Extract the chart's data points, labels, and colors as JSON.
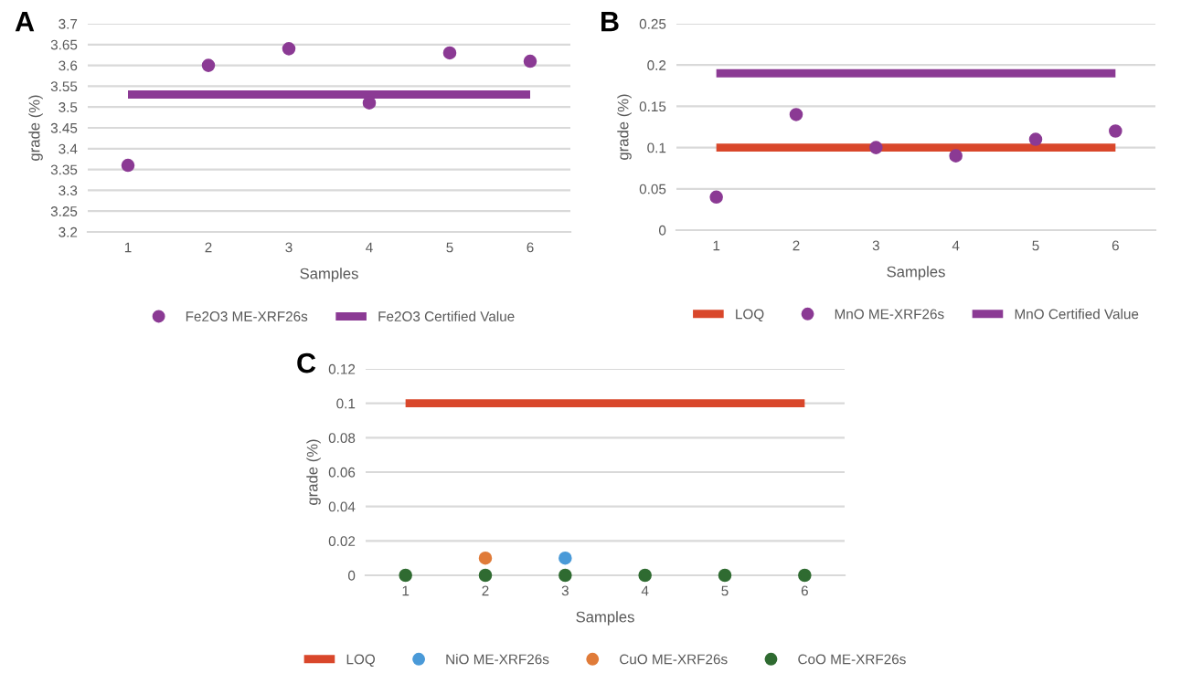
{
  "chart_data": [
    {
      "type": "scatter",
      "title": "A",
      "xlabel": "Samples",
      "ylabel": "grade (%)",
      "categories": [
        "1",
        "2",
        "3",
        "4",
        "5",
        "6"
      ],
      "ylim": [
        3.2,
        3.7
      ],
      "yticks": [
        3.2,
        3.25,
        3.3,
        3.35,
        3.4,
        3.45,
        3.5,
        3.55,
        3.6,
        3.65,
        3.7
      ],
      "grid": "y",
      "legend": "bottom",
      "series": [
        {
          "name": "Fe2O3 ME-XRF26s",
          "color": "#8b3a94",
          "marker": "circle",
          "values": [
            3.36,
            3.6,
            3.64,
            3.51,
            3.63,
            3.61
          ]
        },
        {
          "name": "Fe2O3 Certified Value",
          "type": "line",
          "color": "#8b3a94",
          "marker": "none",
          "values": [
            3.53,
            3.53,
            3.53,
            3.53,
            3.53,
            3.53
          ]
        }
      ]
    },
    {
      "type": "scatter",
      "title": "B",
      "xlabel": "Samples",
      "ylabel": "grade (%)",
      "categories": [
        "1",
        "2",
        "3",
        "4",
        "5",
        "6"
      ],
      "ylim": [
        0,
        0.25
      ],
      "yticks": [
        0,
        0.05,
        0.1,
        0.15,
        0.2,
        0.25
      ],
      "grid": "y",
      "legend": "bottom",
      "series": [
        {
          "name": "LOQ",
          "type": "line",
          "color": "#d9472b",
          "marker": "none",
          "values": [
            0.1,
            0.1,
            0.1,
            0.1,
            0.1,
            0.1
          ]
        },
        {
          "name": "MnO ME-XRF26s",
          "color": "#8b3a94",
          "marker": "circle",
          "values": [
            0.04,
            0.14,
            0.1,
            0.09,
            0.11,
            0.12
          ]
        },
        {
          "name": "MnO Certified Value",
          "type": "line",
          "color": "#8b3a94",
          "marker": "none",
          "values": [
            0.19,
            0.19,
            0.19,
            0.19,
            0.19,
            0.19
          ]
        }
      ]
    },
    {
      "type": "scatter",
      "title": "C",
      "xlabel": "Samples",
      "ylabel": "grade (%)",
      "categories": [
        "1",
        "2",
        "3",
        "4",
        "5",
        "6"
      ],
      "ylim": [
        0,
        0.12
      ],
      "yticks": [
        0,
        0.02,
        0.04,
        0.06,
        0.08,
        0.1,
        0.12
      ],
      "grid": "y",
      "legend": "bottom",
      "series": [
        {
          "name": "LOQ",
          "type": "line",
          "color": "#d9472b",
          "marker": "none",
          "values": [
            0.1,
            0.1,
            0.1,
            0.1,
            0.1,
            0.1
          ]
        },
        {
          "name": "NiO ME-XRF26s",
          "color": "#4a9ad8",
          "marker": "circle",
          "values": [
            null,
            null,
            0.01,
            null,
            null,
            null
          ]
        },
        {
          "name": "CuO ME-XRF26s",
          "color": "#e07b39",
          "marker": "circle",
          "values": [
            null,
            0.01,
            null,
            null,
            null,
            null
          ]
        },
        {
          "name": "CoO ME-XRF26s",
          "color": "#2f6b31",
          "marker": "circle",
          "values": [
            0,
            0,
            0,
            0,
            0,
            0
          ]
        }
      ]
    }
  ]
}
